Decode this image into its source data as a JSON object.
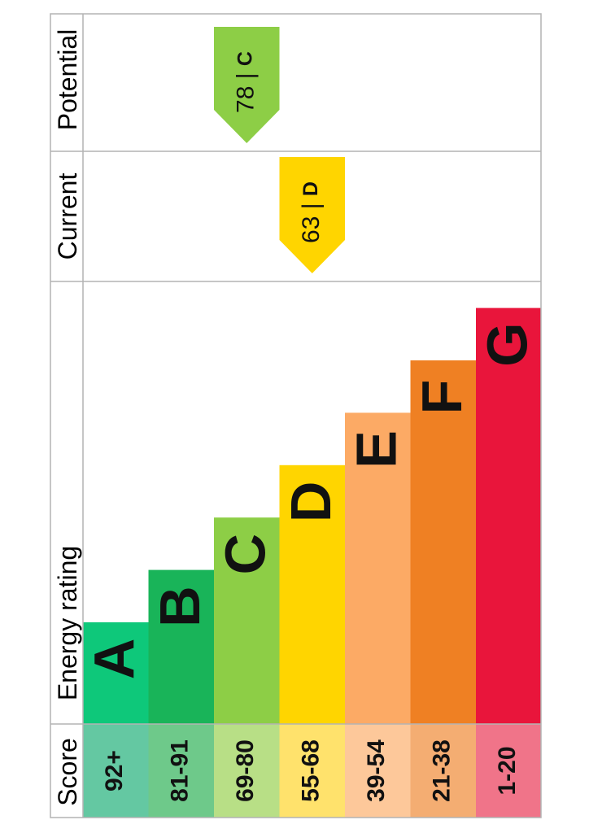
{
  "chart_data": {
    "type": "bar",
    "headers": {
      "score": "Score",
      "energy_rating": "Energy rating",
      "current": "Current",
      "potential": "Potential"
    },
    "bands": [
      {
        "letter": "A",
        "score_range": "92+",
        "color": "#0ec87a",
        "score_bg": "#64c8a2"
      },
      {
        "letter": "B",
        "score_range": "81-91",
        "color": "#19b459",
        "score_bg": "#6ec98a"
      },
      {
        "letter": "C",
        "score_range": "69-80",
        "color": "#8dce46",
        "score_bg": "#b8df86"
      },
      {
        "letter": "D",
        "score_range": "55-68",
        "color": "#ffd500",
        "score_bg": "#ffe26c"
      },
      {
        "letter": "E",
        "score_range": "39-54",
        "color": "#fcaa65",
        "score_bg": "#fdc89a"
      },
      {
        "letter": "F",
        "score_range": "21-38",
        "color": "#ef8023",
        "score_bg": "#f4ad72"
      },
      {
        "letter": "G",
        "score_range": "1-20",
        "color": "#e9153b",
        "score_bg": "#f07489"
      }
    ],
    "current": {
      "value": 63,
      "band": "D",
      "label_sep": "|",
      "color": "#ffd500"
    },
    "potential": {
      "value": 78,
      "band": "C",
      "label_sep": "|",
      "color": "#8dce46"
    }
  }
}
